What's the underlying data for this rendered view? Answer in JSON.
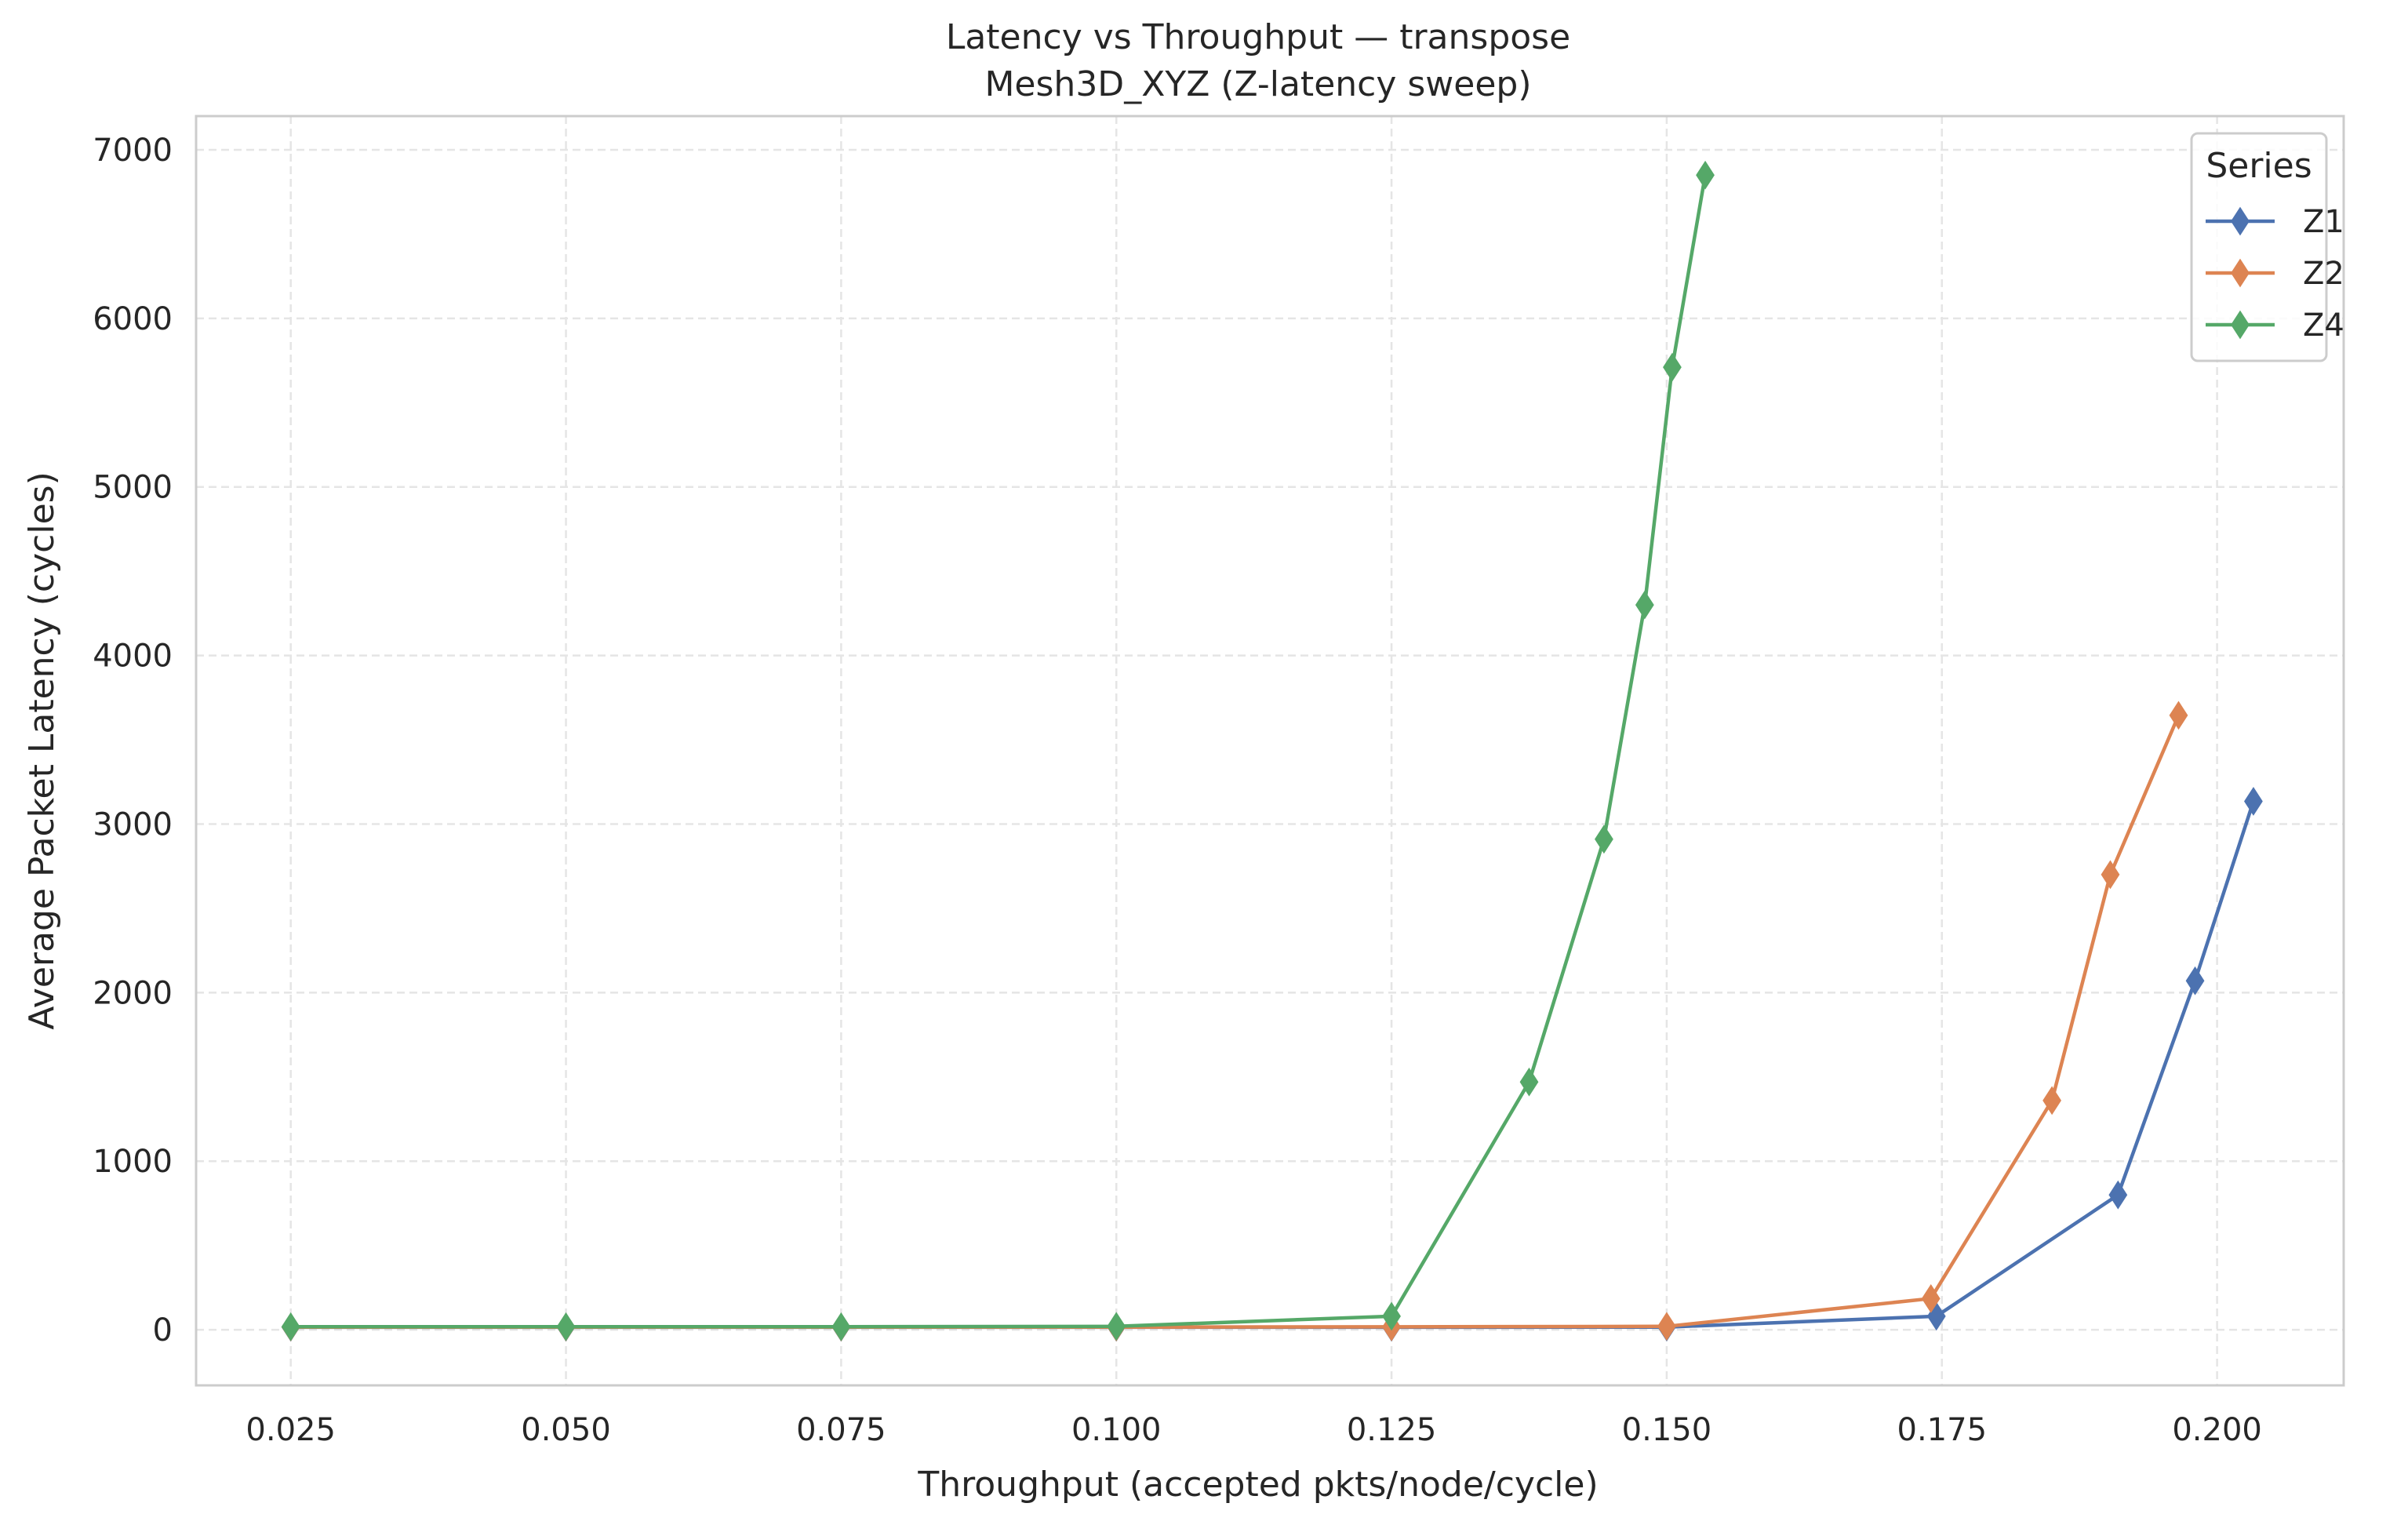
{
  "chart_data": {
    "type": "line",
    "title": "Latency vs Throughput — transpose",
    "subtitle": "Mesh3D_XYZ (Z-latency sweep)",
    "xlabel": "Throughput (accepted pkts/node/cycle)",
    "ylabel": "Average Packet Latency (cycles)",
    "xlim": [
      0.0164,
      0.2115
    ],
    "ylim": [
      -330,
      7200
    ],
    "xticks": [
      0.025,
      0.05,
      0.075,
      0.1,
      0.125,
      0.15,
      0.175,
      0.2
    ],
    "xtick_labels": [
      "0.025",
      "0.050",
      "0.075",
      "0.100",
      "0.125",
      "0.150",
      "0.175",
      "0.200"
    ],
    "yticks": [
      0,
      1000,
      2000,
      3000,
      4000,
      5000,
      6000,
      7000
    ],
    "ytick_labels": [
      "0",
      "1000",
      "2000",
      "3000",
      "4000",
      "5000",
      "6000",
      "7000"
    ],
    "grid": true,
    "grid_style": "dashed",
    "marker": "thin-diamond",
    "legend": {
      "title": "Series",
      "placement": "top-right"
    },
    "series": [
      {
        "name": "Z1",
        "color": "#4c72b0",
        "x": [
          0.025,
          0.05,
          0.075,
          0.1,
          0.125,
          0.15,
          0.1745,
          0.191,
          0.198,
          0.2033
        ],
        "y": [
          15,
          15,
          15,
          15,
          15,
          16,
          80,
          800,
          2070,
          3135
        ]
      },
      {
        "name": "Z2",
        "color": "#dd8452",
        "x": [
          0.025,
          0.05,
          0.075,
          0.1,
          0.125,
          0.15,
          0.174,
          0.185,
          0.1903,
          0.1965
        ],
        "y": [
          16,
          16,
          16,
          16,
          17,
          20,
          185,
          1360,
          2700,
          3645
        ]
      },
      {
        "name": "Z4",
        "color": "#55a868",
        "x": [
          0.025,
          0.05,
          0.075,
          0.1,
          0.125,
          0.1375,
          0.1443,
          0.148,
          0.1505,
          0.1535
        ],
        "y": [
          18,
          18,
          18,
          20,
          80,
          1470,
          2910,
          4300,
          5710,
          6850
        ]
      }
    ]
  }
}
